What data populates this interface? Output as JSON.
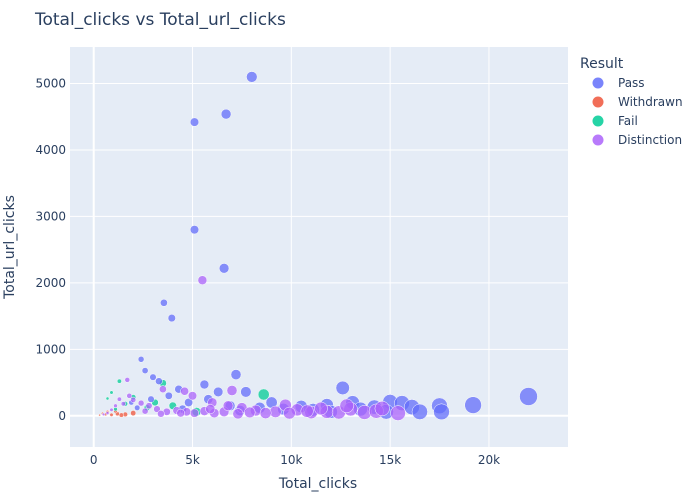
{
  "chart_data": {
    "type": "scatter",
    "title": "Total_clicks vs Total_url_clicks",
    "xlabel": "Total_clicks",
    "ylabel": "Total_url_clicks",
    "xlim": [
      -1200,
      24000
    ],
    "ylim": [
      -470,
      5550
    ],
    "x_ticks": [
      0,
      5000,
      10000,
      15000,
      20000
    ],
    "x_tick_labels": [
      "0",
      "5k",
      "10k",
      "15k",
      "20k"
    ],
    "y_ticks": [
      0,
      1000,
      2000,
      3000,
      4000,
      5000
    ],
    "y_tick_labels": [
      "0",
      "1000",
      "2000",
      "3000",
      "4000",
      "5000"
    ],
    "grid": true,
    "legend_title": "Result",
    "legend_position": "right",
    "size_encodes": "Total_clicks",
    "series": [
      {
        "name": "Pass",
        "color": "#636efa",
        "points": [
          [
            8000,
            5100
          ],
          [
            5100,
            4420
          ],
          [
            6700,
            4540
          ],
          [
            5100,
            2800
          ],
          [
            6600,
            2220
          ],
          [
            3550,
            1700
          ],
          [
            3950,
            1470
          ],
          [
            7200,
            620
          ],
          [
            2400,
            850
          ],
          [
            2600,
            680
          ],
          [
            3000,
            580
          ],
          [
            3300,
            520
          ],
          [
            4300,
            400
          ],
          [
            5600,
            470
          ],
          [
            6300,
            360
          ],
          [
            7700,
            360
          ],
          [
            9000,
            200
          ],
          [
            10500,
            140
          ],
          [
            11800,
            160
          ],
          [
            12600,
            420
          ],
          [
            13100,
            200
          ],
          [
            14200,
            130
          ],
          [
            15000,
            210
          ],
          [
            15600,
            190
          ],
          [
            16100,
            130
          ],
          [
            17500,
            150
          ],
          [
            19200,
            160
          ],
          [
            22000,
            290
          ],
          [
            9600,
            100
          ],
          [
            11100,
            90
          ],
          [
            12000,
            60
          ],
          [
            13500,
            100
          ],
          [
            14800,
            60
          ],
          [
            16500,
            60
          ],
          [
            17600,
            60
          ],
          [
            4800,
            200
          ],
          [
            5800,
            250
          ],
          [
            6900,
            150
          ],
          [
            8400,
            120
          ],
          [
            2900,
            250
          ],
          [
            3800,
            300
          ],
          [
            1900,
            200
          ],
          [
            4500,
            100
          ],
          [
            7400,
            80
          ],
          [
            2200,
            120
          ]
        ]
      },
      {
        "name": "Withdrawn",
        "color": "#ef553b",
        "points": [
          [
            300,
            10
          ],
          [
            600,
            20
          ],
          [
            900,
            15
          ],
          [
            1200,
            30
          ],
          [
            1600,
            20
          ],
          [
            2000,
            40
          ],
          [
            700,
            60
          ],
          [
            450,
            35
          ],
          [
            1100,
            70
          ],
          [
            1400,
            10
          ]
        ]
      },
      {
        "name": "Fail",
        "color": "#00cc96",
        "points": [
          [
            8600,
            320
          ],
          [
            3500,
            490
          ],
          [
            1300,
            520
          ],
          [
            900,
            350
          ],
          [
            700,
            260
          ],
          [
            2000,
            280
          ],
          [
            1600,
            180
          ],
          [
            4000,
            150
          ],
          [
            2700,
            120
          ],
          [
            5200,
            60
          ],
          [
            1100,
            100
          ],
          [
            3100,
            200
          ]
        ]
      },
      {
        "name": "Distinction",
        "color": "#ab63fa",
        "points": [
          [
            5500,
            2040
          ],
          [
            1700,
            540
          ],
          [
            3500,
            400
          ],
          [
            4600,
            370
          ],
          [
            7000,
            380
          ],
          [
            5000,
            300
          ],
          [
            6000,
            200
          ],
          [
            7500,
            120
          ],
          [
            8200,
            80
          ],
          [
            9700,
            160
          ],
          [
            10300,
            90
          ],
          [
            11000,
            50
          ],
          [
            11800,
            60
          ],
          [
            12400,
            50
          ],
          [
            13000,
            100
          ],
          [
            13700,
            50
          ],
          [
            14300,
            70
          ],
          [
            15400,
            40
          ],
          [
            12800,
            150
          ],
          [
            10800,
            70
          ],
          [
            9200,
            60
          ],
          [
            8700,
            40
          ],
          [
            7900,
            50
          ],
          [
            7300,
            30
          ],
          [
            6600,
            60
          ],
          [
            6100,
            40
          ],
          [
            5600,
            70
          ],
          [
            5100,
            40
          ],
          [
            4700,
            60
          ],
          [
            4200,
            80
          ],
          [
            3700,
            60
          ],
          [
            3200,
            100
          ],
          [
            2800,
            150
          ],
          [
            2400,
            190
          ],
          [
            2000,
            240
          ],
          [
            1800,
            300
          ],
          [
            1500,
            180
          ],
          [
            1300,
            250
          ],
          [
            1100,
            150
          ],
          [
            900,
            90
          ],
          [
            700,
            40
          ],
          [
            500,
            20
          ],
          [
            2600,
            70
          ],
          [
            3400,
            30
          ],
          [
            4400,
            40
          ],
          [
            5900,
            100
          ],
          [
            6800,
            150
          ],
          [
            9900,
            40
          ],
          [
            11500,
            110
          ],
          [
            14600,
            110
          ]
        ]
      }
    ]
  }
}
